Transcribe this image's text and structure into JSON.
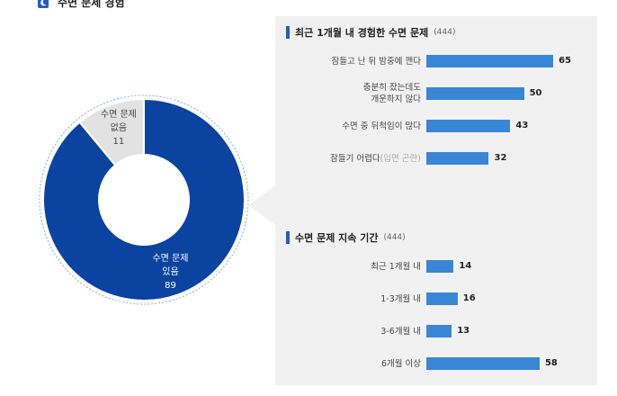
{
  "header": {
    "title": "수면 문제 경험"
  },
  "colors": {
    "primary": "#0b43a0",
    "secondary": "#e2e2e2",
    "bar": "#3a86d6",
    "accent": "#1f5fbf"
  },
  "chart_data": [
    {
      "type": "pie",
      "categories": [
        "수면 문제 있음",
        "수면 문제 없음"
      ],
      "values": [
        89,
        11
      ],
      "labels": [
        {
          "line1": "수면 문제",
          "line2": "있음",
          "value": "89"
        },
        {
          "line1": "수면 문제",
          "line2": "없음",
          "value": "11"
        }
      ]
    },
    {
      "type": "bar",
      "title": "최근 1개월 내 경험한 수면 문제",
      "n_label": "(444)",
      "categories": [
        "잠들고 난 뒤 밤중에 깬다",
        "충분히 잤는데도 개운하지 않다",
        "수면 중 뒤척임이 많다",
        "잠들기 어렵다"
      ],
      "category_lines": [
        {
          "line1": "잠들고 난 뒤 밤중에 깬다",
          "line2": "",
          "sub": ""
        },
        {
          "line1": "충분히 잤는데도",
          "line2": "개운하지 않다",
          "sub": ""
        },
        {
          "line1": "수면 중 뒤척임이 많다",
          "line2": "",
          "sub": ""
        },
        {
          "line1": "잠들기 어렵다",
          "line2": "",
          "sub": "(입면 곤란)"
        }
      ],
      "values": [
        65,
        50,
        43,
        32
      ],
      "value_labels": [
        "65",
        "50",
        "43",
        "32"
      ]
    },
    {
      "type": "bar",
      "title": "수면 문제 지속 기간",
      "n_label": "(444)",
      "categories": [
        "최근 1개월 내",
        "1-3개월 내",
        "3-6개월 내",
        "6개월 이상"
      ],
      "values": [
        14,
        16,
        13,
        58
      ],
      "value_labels": [
        "14",
        "16",
        "13",
        "58"
      ]
    }
  ]
}
